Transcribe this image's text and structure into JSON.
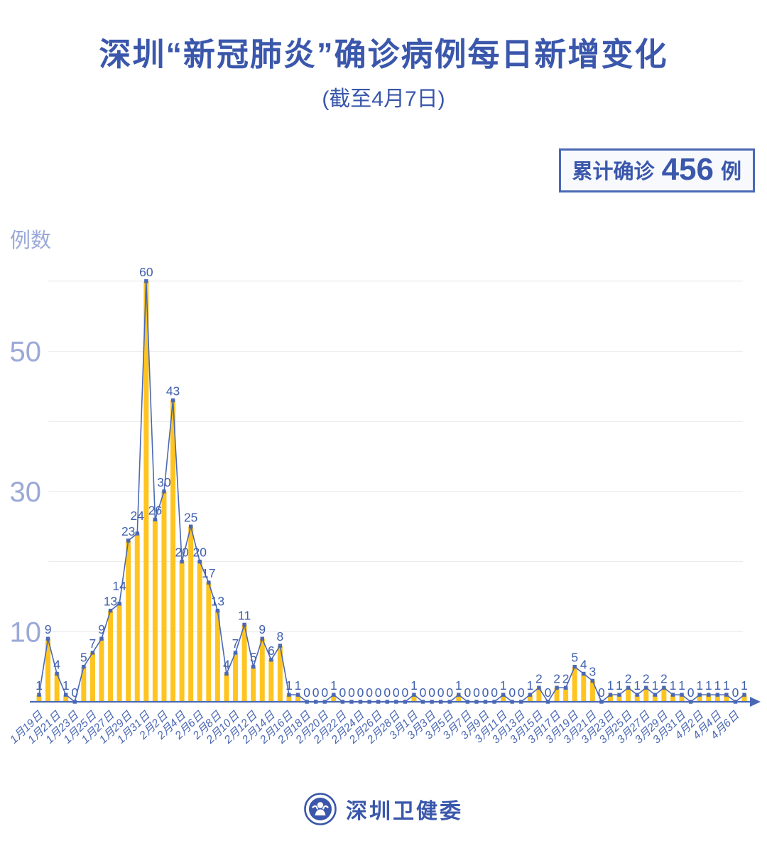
{
  "header": {
    "title": "深圳“新冠肺炎”确诊病例每日新增变化",
    "subtitle": "(截至4月7日)"
  },
  "summary_badge": {
    "prefix": "累计确诊",
    "value": "456",
    "suffix": "例"
  },
  "footer": {
    "org_name": "深圳卫健委"
  },
  "colors": {
    "brand_blue": "#3a57ab",
    "line_blue": "#4a68b4",
    "label_blue": "#3f5fae",
    "bar_yellow": "#ffc420",
    "axis_label_light": "#9aa9d8",
    "grid_gray": "#e8e8e8",
    "badge_bg": "#f7f9fd"
  },
  "chart_data": {
    "type": "bar",
    "overlay": "line",
    "title": "深圳“新冠肺炎”确诊病例每日新增变化",
    "subtitle": "(截至4月7日)",
    "xlabel": "",
    "ylabel": "例数",
    "ylim": [
      0,
      62
    ],
    "gridlines": [
      10,
      20,
      30,
      40,
      50,
      60
    ],
    "y_ticks_labeled": [
      10,
      30,
      50
    ],
    "x_labeled_every": 2,
    "legend": "none",
    "cumulative_total": 456,
    "categories": [
      "1月19日",
      "1月20日",
      "1月21日",
      "1月22日",
      "1月23日",
      "1月24日",
      "1月25日",
      "1月26日",
      "1月27日",
      "1月28日",
      "1月29日",
      "1月30日",
      "1月31日",
      "2月1日",
      "2月2日",
      "2月3日",
      "2月4日",
      "2月5日",
      "2月6日",
      "2月7日",
      "2月8日",
      "2月9日",
      "2月10日",
      "2月11日",
      "2月12日",
      "2月13日",
      "2月14日",
      "2月15日",
      "2月16日",
      "2月17日",
      "2月18日",
      "2月19日",
      "2月20日",
      "2月21日",
      "2月22日",
      "2月23日",
      "2月24日",
      "2月25日",
      "2月26日",
      "2月27日",
      "2月28日",
      "2月29日",
      "3月1日",
      "3月2日",
      "3月3日",
      "3月4日",
      "3月5日",
      "3月6日",
      "3月7日",
      "3月8日",
      "3月9日",
      "3月10日",
      "3月11日",
      "3月12日",
      "3月13日",
      "3月14日",
      "3月15日",
      "3月16日",
      "3月17日",
      "3月18日",
      "3月19日",
      "3月20日",
      "3月21日",
      "3月22日",
      "3月23日",
      "3月24日",
      "3月25日",
      "3月26日",
      "3月27日",
      "3月28日",
      "3月29日",
      "3月30日",
      "3月31日",
      "4月1日",
      "4月2日",
      "4月3日",
      "4月4日",
      "4月5日",
      "4月6日",
      "4月7日"
    ],
    "values": [
      1,
      9,
      4,
      1,
      0,
      5,
      7,
      9,
      13,
      14,
      23,
      24,
      60,
      26,
      30,
      43,
      20,
      25,
      20,
      17,
      13,
      4,
      7,
      11,
      5,
      9,
      6,
      8,
      1,
      1,
      0,
      0,
      0,
      1,
      0,
      0,
      0,
      0,
      0,
      0,
      0,
      0,
      1,
      0,
      0,
      0,
      0,
      1,
      0,
      0,
      0,
      0,
      1,
      0,
      0,
      1,
      2,
      0,
      2,
      2,
      5,
      4,
      3,
      0,
      1,
      1,
      2,
      1,
      2,
      1,
      2,
      1,
      1,
      0,
      1,
      1,
      1,
      1,
      0,
      1
    ]
  }
}
